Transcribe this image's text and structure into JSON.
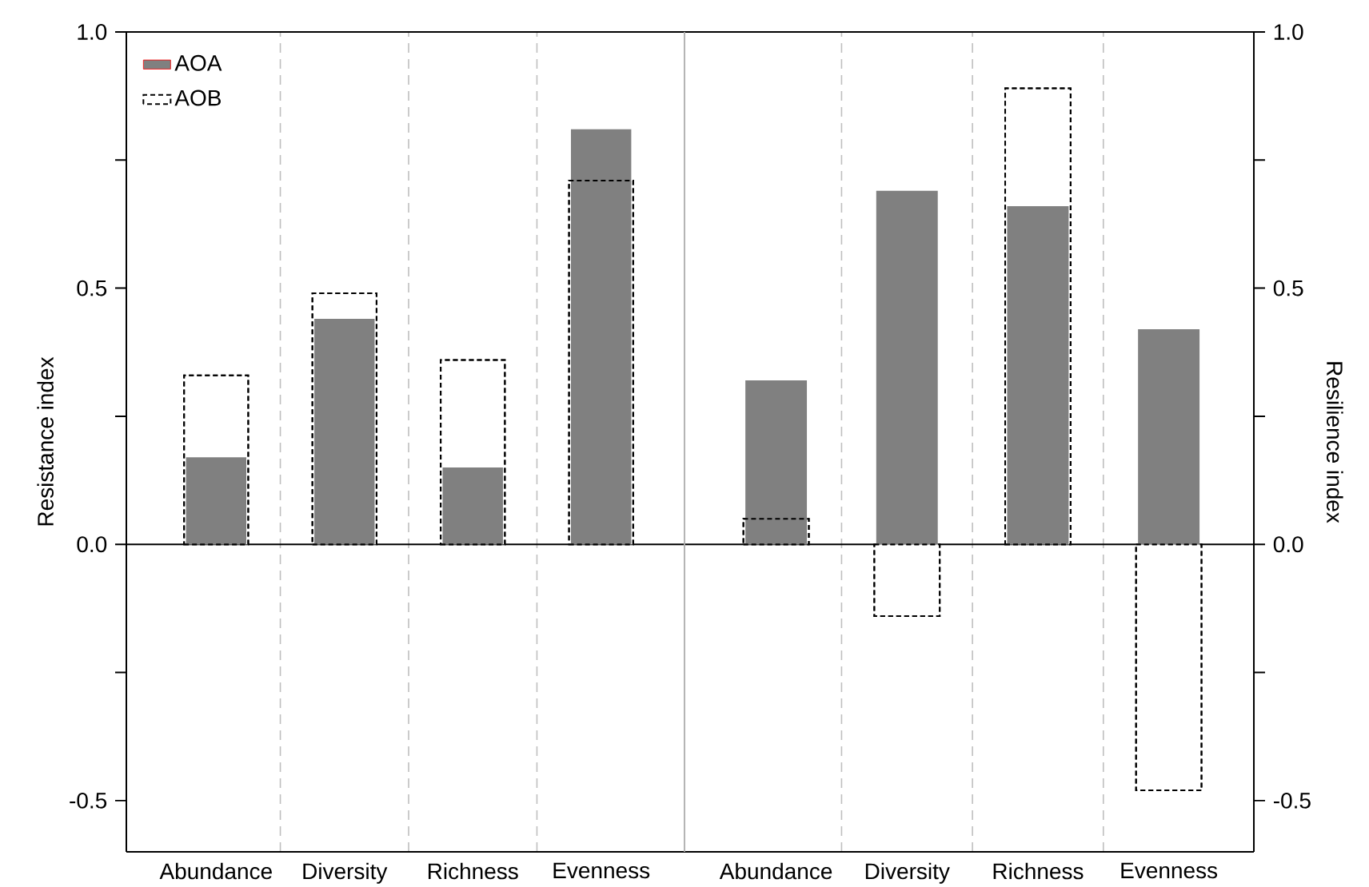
{
  "chart_data": [
    {
      "type": "bar",
      "categories": [
        "Abundance",
        "Diversity",
        "Richness",
        "Evenness"
      ],
      "ylabel": "Resistance index",
      "ylim": [
        -0.6,
        1.0
      ],
      "yticks": [
        {
          "value": -0.5,
          "label": "-0.5"
        },
        {
          "value": -0.25,
          "label": null
        },
        {
          "value": 0,
          "label": "0.0"
        },
        {
          "value": 0.25,
          "label": null
        },
        {
          "value": 0.5,
          "label": "0.5"
        },
        {
          "value": 0.75,
          "label": null
        },
        {
          "value": 1.0,
          "label": "1.0"
        }
      ],
      "grid": "x",
      "legend": "top left",
      "series": [
        {
          "name": "AOA",
          "color": "#808080",
          "values": [
            0.17,
            0.44,
            0.15,
            0.81
          ]
        },
        {
          "name": "AOB",
          "color": "#000000",
          "line_style": "dashed",
          "values": [
            0.33,
            0.49,
            0.36,
            0.71
          ]
        }
      ]
    },
    {
      "type": "bar",
      "categories": [
        "Abundance",
        "Diversity",
        "Richness",
        "Evenness"
      ],
      "y2label": "Resilience index",
      "y2lim": [
        -0.6,
        1.0
      ],
      "y2ticks": [
        {
          "value": -0.5,
          "label": "-0.5"
        },
        {
          "value": -0.25,
          "label": null
        },
        {
          "value": 0,
          "label": "0.0"
        },
        {
          "value": 0.25,
          "label": null
        },
        {
          "value": 0.5,
          "label": "0.5"
        },
        {
          "value": 0.75,
          "label": null
        },
        {
          "value": 1.0,
          "label": "1.0"
        }
      ],
      "grid": "x",
      "series": [
        {
          "color": "#808080",
          "axis": "y2",
          "values": [
            0.32,
            0.69,
            0.66,
            0.42
          ]
        },
        {
          "color": "#000000",
          "line_style": "dashed",
          "axis": "y2",
          "values": [
            0.05,
            -0.14,
            0.89,
            -0.48
          ]
        }
      ]
    }
  ]
}
